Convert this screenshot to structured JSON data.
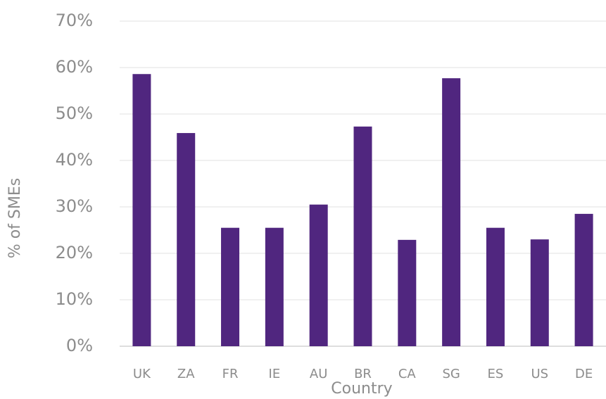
{
  "chart_data": {
    "type": "bar",
    "x_label": "Country",
    "y_label": "% of SMEs",
    "categories": [
      "UK",
      "ZA",
      "FR",
      "IE",
      "AU",
      "BR",
      "CA",
      "SG",
      "ES",
      "US",
      "DE"
    ],
    "values": [
      58.6,
      45.9,
      25.5,
      25.5,
      30.5,
      47.3,
      22.9,
      57.7,
      25.5,
      23.0,
      28.5
    ],
    "color": "#50267f",
    "ylim": [
      0,
      70
    ],
    "yticks": [
      {
        "value": 0,
        "label": "0%"
      },
      {
        "value": 10,
        "label": "10%"
      },
      {
        "value": 20,
        "label": "20%"
      },
      {
        "value": 30,
        "label": "30%"
      },
      {
        "value": 40,
        "label": "40%"
      },
      {
        "value": 50,
        "label": "50%"
      },
      {
        "value": 60,
        "label": "60%"
      },
      {
        "value": 70,
        "label": "70%"
      }
    ],
    "grid": true
  }
}
